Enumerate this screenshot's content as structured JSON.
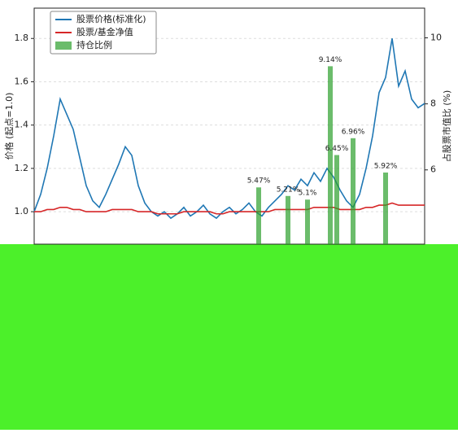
{
  "chart_data": {
    "type": "line",
    "ylabel": "价格 (起点=1.0)",
    "y2label": "占股票市值比 (%)",
    "x": [
      0,
      2,
      4,
      6,
      8,
      10,
      12,
      14,
      16,
      18,
      20,
      22,
      24,
      26,
      28,
      30,
      32,
      34,
      36,
      38,
      40,
      42,
      44,
      46,
      48,
      50,
      52,
      54,
      56,
      58,
      60,
      62,
      64,
      66,
      68,
      70,
      72,
      74,
      76,
      78,
      80,
      82,
      84,
      86,
      88,
      90,
      92,
      94,
      96,
      98,
      100,
      102,
      104,
      106,
      108,
      110,
      112,
      114,
      116,
      118,
      120
    ],
    "xlim": [
      0,
      120
    ],
    "series": [
      {
        "name": "股票价格(标准化)",
        "color": "#1f77b4",
        "values": [
          1.0,
          1.08,
          1.2,
          1.35,
          1.52,
          1.45,
          1.38,
          1.25,
          1.12,
          1.05,
          1.02,
          1.08,
          1.15,
          1.22,
          1.3,
          1.26,
          1.12,
          1.04,
          1.0,
          0.98,
          1.0,
          0.97,
          0.99,
          1.02,
          0.98,
          1.0,
          1.03,
          0.99,
          0.97,
          1.0,
          1.02,
          0.99,
          1.01,
          1.04,
          1.0,
          0.98,
          1.02,
          1.05,
          1.08,
          1.12,
          1.1,
          1.15,
          1.12,
          1.18,
          1.14,
          1.2,
          1.16,
          1.1,
          1.05,
          1.02,
          1.08,
          1.2,
          1.35,
          1.55,
          1.62,
          1.8,
          1.58,
          1.65,
          1.52,
          1.48,
          1.5
        ]
      },
      {
        "name": "股票/基金净值",
        "color": "#d62728",
        "values": [
          1.0,
          1.0,
          1.01,
          1.01,
          1.02,
          1.02,
          1.01,
          1.01,
          1.0,
          1.0,
          1.0,
          1.0,
          1.01,
          1.01,
          1.01,
          1.01,
          1.0,
          1.0,
          1.0,
          0.99,
          0.99,
          0.99,
          0.99,
          1.0,
          1.0,
          1.0,
          1.0,
          1.0,
          0.99,
          0.99,
          1.0,
          1.0,
          1.0,
          1.0,
          1.0,
          1.0,
          1.0,
          1.01,
          1.01,
          1.01,
          1.01,
          1.01,
          1.01,
          1.02,
          1.02,
          1.02,
          1.02,
          1.01,
          1.01,
          1.01,
          1.01,
          1.02,
          1.02,
          1.03,
          1.03,
          1.04,
          1.03,
          1.03,
          1.03,
          1.03,
          1.03
        ]
      },
      {
        "name": "持仓比例",
        "color": "#2ca02c",
        "axis": "y2",
        "kind": "bar",
        "x": [
          69,
          78,
          84,
          91,
          93,
          98,
          108
        ],
        "values": [
          5.47,
          5.21,
          5.1,
          9.14,
          6.45,
          6.96,
          5.92
        ],
        "value_labels": [
          "5.47%",
          "5.21%",
          "5.1%",
          "9.14%",
          "6.45%",
          "6.96%",
          "5.92%"
        ]
      }
    ],
    "ylim": [
      0.85,
      1.94
    ],
    "yticks": [
      {
        "value": 1.0,
        "label": "1.0"
      },
      {
        "value": 1.2,
        "label": "1.2"
      },
      {
        "value": 1.4,
        "label": "1.4"
      },
      {
        "value": 1.6,
        "label": "1.6"
      },
      {
        "value": 1.8,
        "label": "1.8"
      }
    ],
    "y2lim": [
      3.75,
      10.9
    ],
    "y2ticks": [
      6,
      8,
      10
    ],
    "grid": true,
    "legend": "upper-left"
  }
}
